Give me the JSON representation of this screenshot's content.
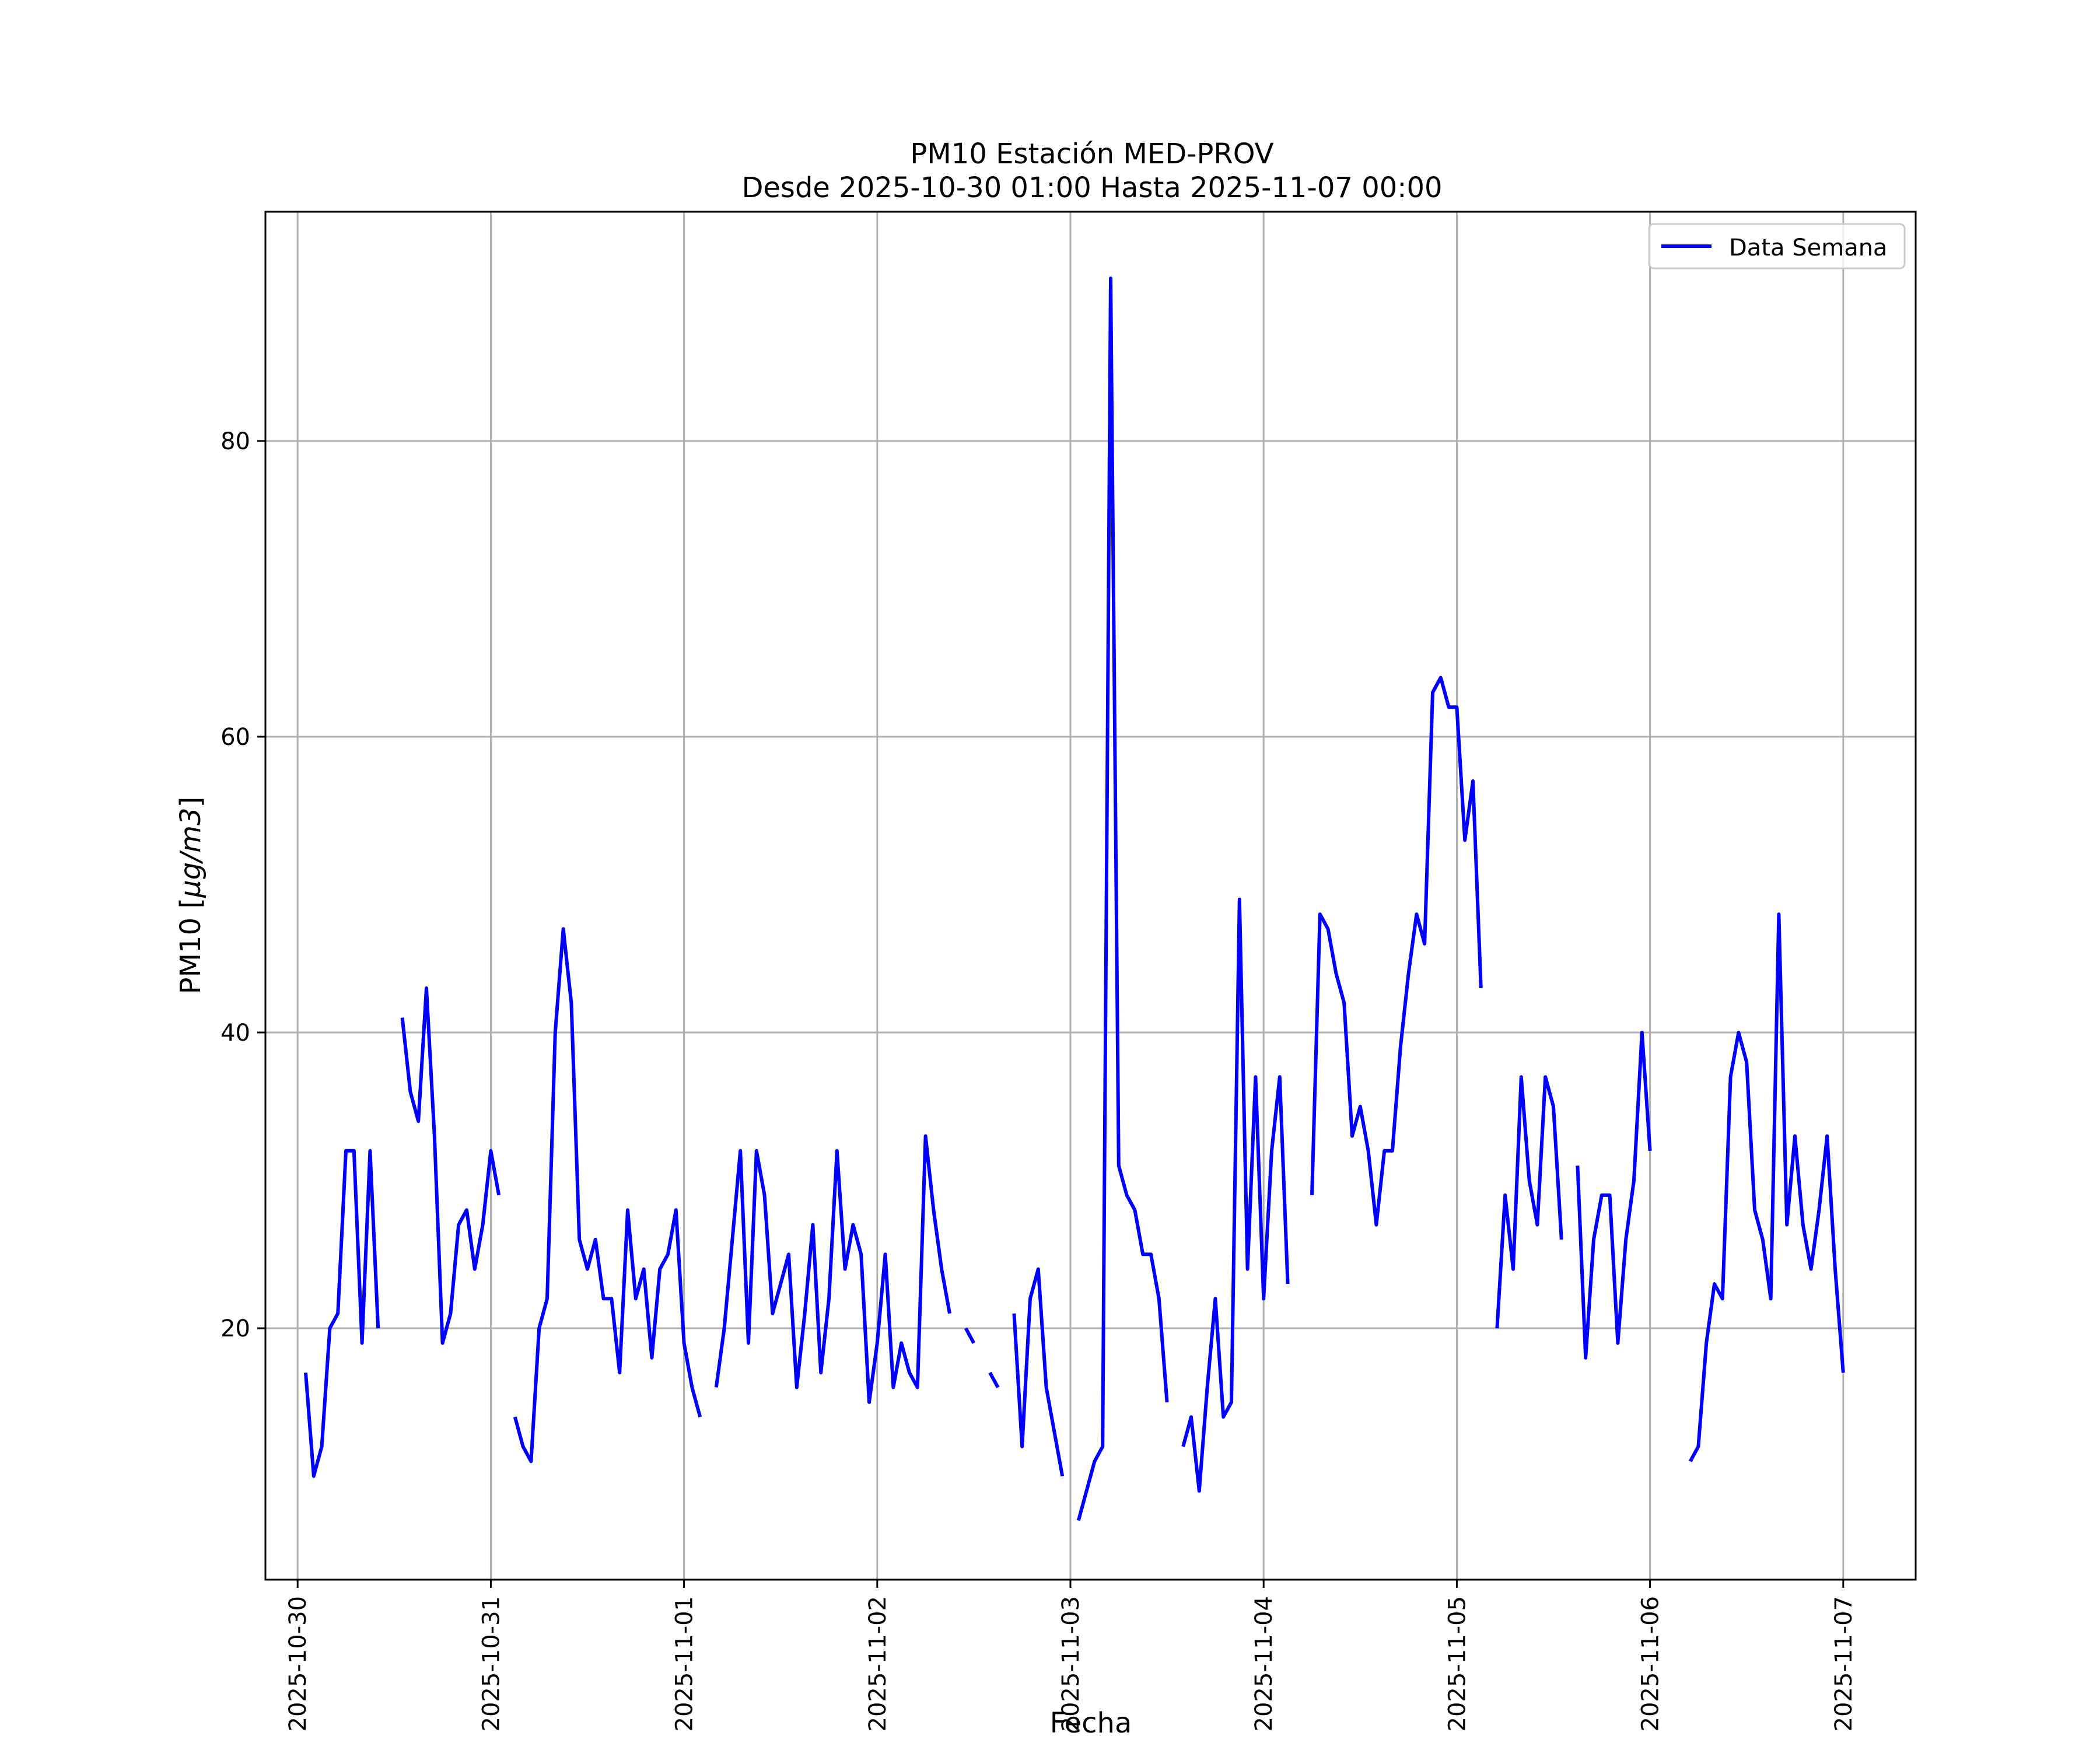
{
  "chart_data": {
    "type": "line",
    "title": "PM10 Estación MED-PROV",
    "subtitle": "Desde 2025-10-30 01:00 Hasta 2025-11-07 00:00",
    "xlabel": "Fecha",
    "ylabel_text": "PM10 [",
    "ylabel_unit": "μg/m3",
    "ylabel_close": "]",
    "xlim": [
      "2025-10-29 20:00",
      "2025-11-07 09:00"
    ],
    "ylim": [
      3,
      95.5
    ],
    "grid": true,
    "legend_position": "top-right",
    "line_color": "#0000ff",
    "x_ticks": [
      "2025-10-30",
      "2025-10-31",
      "2025-11-01",
      "2025-11-02",
      "2025-11-03",
      "2025-11-04",
      "2025-11-05",
      "2025-11-06",
      "2025-11-07"
    ],
    "y_ticks": [
      20,
      40,
      60,
      80
    ],
    "series": [
      {
        "name": "Data Semana",
        "segments": [
          [
            [
              "2025-10-30 01:00",
              17
            ],
            [
              "2025-10-30 02:00",
              10
            ],
            [
              "2025-10-30 03:00",
              12
            ],
            [
              "2025-10-30 04:00",
              20
            ],
            [
              "2025-10-30 05:00",
              21
            ],
            [
              "2025-10-30 06:00",
              32
            ],
            [
              "2025-10-30 07:00",
              32
            ],
            [
              "2025-10-30 08:00",
              19
            ],
            [
              "2025-10-30 09:00",
              32
            ],
            [
              "2025-10-30 10:00",
              20
            ]
          ],
          [
            [
              "2025-10-30 13:00",
              41
            ],
            [
              "2025-10-30 14:00",
              36
            ],
            [
              "2025-10-30 15:00",
              34
            ],
            [
              "2025-10-30 16:00",
              43
            ],
            [
              "2025-10-30 17:00",
              33
            ],
            [
              "2025-10-30 18:00",
              19
            ],
            [
              "2025-10-30 19:00",
              21
            ],
            [
              "2025-10-30 20:00",
              27
            ],
            [
              "2025-10-30 21:00",
              28
            ],
            [
              "2025-10-30 22:00",
              24
            ],
            [
              "2025-10-30 23:00",
              27
            ],
            [
              "2025-10-31 00:00",
              32
            ],
            [
              "2025-10-31 01:00",
              29
            ]
          ],
          [
            [
              "2025-10-31 03:00",
              14
            ],
            [
              "2025-10-31 04:00",
              12
            ],
            [
              "2025-10-31 05:00",
              11
            ],
            [
              "2025-10-31 06:00",
              20
            ],
            [
              "2025-10-31 07:00",
              22
            ],
            [
              "2025-10-31 08:00",
              40
            ],
            [
              "2025-10-31 09:00",
              47
            ],
            [
              "2025-10-31 10:00",
              42
            ],
            [
              "2025-10-31 11:00",
              26
            ],
            [
              "2025-10-31 12:00",
              24
            ],
            [
              "2025-10-31 13:00",
              26
            ],
            [
              "2025-10-31 14:00",
              22
            ],
            [
              "2025-10-31 15:00",
              22
            ],
            [
              "2025-10-31 16:00",
              17
            ],
            [
              "2025-10-31 17:00",
              28
            ],
            [
              "2025-10-31 18:00",
              22
            ],
            [
              "2025-10-31 19:00",
              24
            ],
            [
              "2025-10-31 20:00",
              18
            ],
            [
              "2025-10-31 21:00",
              24
            ],
            [
              "2025-10-31 22:00",
              25
            ],
            [
              "2025-10-31 23:00",
              28
            ],
            [
              "2025-11-01 00:00",
              19
            ],
            [
              "2025-11-01 01:00",
              16
            ],
            [
              "2025-11-01 02:00",
              14
            ]
          ],
          [
            [
              "2025-11-01 04:00",
              16
            ],
            [
              "2025-11-01 05:00",
              20
            ],
            [
              "2025-11-01 06:00",
              26
            ],
            [
              "2025-11-01 07:00",
              32
            ],
            [
              "2025-11-01 08:00",
              19
            ],
            [
              "2025-11-01 09:00",
              32
            ],
            [
              "2025-11-01 10:00",
              29
            ],
            [
              "2025-11-01 11:00",
              21
            ],
            [
              "2025-11-01 12:00",
              23
            ],
            [
              "2025-11-01 13:00",
              25
            ],
            [
              "2025-11-01 14:00",
              16
            ],
            [
              "2025-11-01 15:00",
              21
            ],
            [
              "2025-11-01 16:00",
              27
            ],
            [
              "2025-11-01 17:00",
              17
            ],
            [
              "2025-11-01 18:00",
              22
            ],
            [
              "2025-11-01 19:00",
              32
            ],
            [
              "2025-11-01 20:00",
              24
            ],
            [
              "2025-11-01 21:00",
              27
            ],
            [
              "2025-11-01 22:00",
              25
            ],
            [
              "2025-11-01 23:00",
              15
            ],
            [
              "2025-11-02 00:00",
              19
            ],
            [
              "2025-11-02 01:00",
              25
            ],
            [
              "2025-11-02 02:00",
              16
            ],
            [
              "2025-11-02 03:00",
              19
            ],
            [
              "2025-11-02 04:00",
              17
            ],
            [
              "2025-11-02 05:00",
              16
            ],
            [
              "2025-11-02 06:00",
              33
            ],
            [
              "2025-11-02 07:00",
              28
            ],
            [
              "2025-11-02 08:00",
              24
            ],
            [
              "2025-11-02 09:00",
              21
            ]
          ],
          [
            [
              "2025-11-02 11:00",
              20
            ],
            [
              "2025-11-02 12:00",
              19
            ]
          ],
          [
            [
              "2025-11-02 14:00",
              17
            ],
            [
              "2025-11-02 15:00",
              16
            ]
          ],
          [
            [
              "2025-11-02 17:00",
              21
            ],
            [
              "2025-11-02 18:00",
              12
            ],
            [
              "2025-11-02 19:00",
              22
            ],
            [
              "2025-11-02 20:00",
              24
            ],
            [
              "2025-11-02 21:00",
              16
            ],
            [
              "2025-11-02 22:00",
              13
            ],
            [
              "2025-11-02 23:00",
              10
            ]
          ],
          [
            [
              "2025-11-03 01:00",
              7
            ],
            [
              "2025-11-03 02:00",
              9
            ],
            [
              "2025-11-03 03:00",
              11
            ],
            [
              "2025-11-03 04:00",
              12
            ],
            [
              "2025-11-03 05:00",
              91
            ],
            [
              "2025-11-03 06:00",
              31
            ],
            [
              "2025-11-03 07:00",
              29
            ],
            [
              "2025-11-03 08:00",
              28
            ],
            [
              "2025-11-03 09:00",
              25
            ],
            [
              "2025-11-03 10:00",
              25
            ],
            [
              "2025-11-03 11:00",
              22
            ],
            [
              "2025-11-03 12:00",
              15
            ]
          ],
          [
            [
              "2025-11-03 14:00",
              12
            ],
            [
              "2025-11-03 15:00",
              14
            ],
            [
              "2025-11-03 16:00",
              9
            ],
            [
              "2025-11-03 17:00",
              16
            ],
            [
              "2025-11-03 18:00",
              22
            ],
            [
              "2025-11-03 19:00",
              14
            ],
            [
              "2025-11-03 20:00",
              15
            ],
            [
              "2025-11-03 21:00",
              49
            ],
            [
              "2025-11-03 22:00",
              24
            ],
            [
              "2025-11-03 23:00",
              37
            ],
            [
              "2025-11-04 00:00",
              22
            ],
            [
              "2025-11-04 01:00",
              32
            ],
            [
              "2025-11-04 02:00",
              37
            ],
            [
              "2025-11-04 03:00",
              23
            ]
          ],
          [
            [
              "2025-11-04 06:00",
              29
            ],
            [
              "2025-11-04 07:00",
              48
            ],
            [
              "2025-11-04 08:00",
              47
            ],
            [
              "2025-11-04 09:00",
              44
            ],
            [
              "2025-11-04 10:00",
              42
            ],
            [
              "2025-11-04 11:00",
              33
            ],
            [
              "2025-11-04 12:00",
              35
            ],
            [
              "2025-11-04 13:00",
              32
            ],
            [
              "2025-11-04 14:00",
              27
            ],
            [
              "2025-11-04 15:00",
              32
            ],
            [
              "2025-11-04 16:00",
              32
            ],
            [
              "2025-11-04 17:00",
              39
            ],
            [
              "2025-11-04 18:00",
              44
            ],
            [
              "2025-11-04 19:00",
              48
            ],
            [
              "2025-11-04 20:00",
              46
            ],
            [
              "2025-11-04 21:00",
              63
            ],
            [
              "2025-11-04 22:00",
              64
            ],
            [
              "2025-11-04 23:00",
              62
            ],
            [
              "2025-11-05 00:00",
              62
            ],
            [
              "2025-11-05 01:00",
              53
            ],
            [
              "2025-11-05 02:00",
              57
            ],
            [
              "2025-11-05 03:00",
              43
            ]
          ],
          [
            [
              "2025-11-05 05:00",
              20
            ],
            [
              "2025-11-05 06:00",
              29
            ],
            [
              "2025-11-05 07:00",
              24
            ],
            [
              "2025-11-05 08:00",
              37
            ],
            [
              "2025-11-05 09:00",
              30
            ],
            [
              "2025-11-05 10:00",
              27
            ],
            [
              "2025-11-05 11:00",
              37
            ],
            [
              "2025-11-05 12:00",
              35
            ],
            [
              "2025-11-05 13:00",
              26
            ]
          ],
          [
            [
              "2025-11-05 15:00",
              31
            ],
            [
              "2025-11-05 16:00",
              18
            ],
            [
              "2025-11-05 17:00",
              26
            ],
            [
              "2025-11-05 18:00",
              29
            ],
            [
              "2025-11-05 19:00",
              29
            ],
            [
              "2025-11-05 20:00",
              19
            ],
            [
              "2025-11-05 21:00",
              26
            ],
            [
              "2025-11-05 22:00",
              30
            ],
            [
              "2025-11-05 23:00",
              40
            ],
            [
              "2025-11-06 00:00",
              32
            ]
          ],
          [
            [
              "2025-11-06 05:00",
              11
            ],
            [
              "2025-11-06 06:00",
              12
            ],
            [
              "2025-11-06 07:00",
              19
            ],
            [
              "2025-11-06 08:00",
              23
            ],
            [
              "2025-11-06 09:00",
              22
            ],
            [
              "2025-11-06 10:00",
              37
            ],
            [
              "2025-11-06 11:00",
              40
            ],
            [
              "2025-11-06 12:00",
              38
            ],
            [
              "2025-11-06 13:00",
              28
            ],
            [
              "2025-11-06 14:00",
              26
            ],
            [
              "2025-11-06 15:00",
              22
            ],
            [
              "2025-11-06 16:00",
              48
            ],
            [
              "2025-11-06 17:00",
              27
            ],
            [
              "2025-11-06 18:00",
              33
            ],
            [
              "2025-11-06 19:00",
              27
            ],
            [
              "2025-11-06 20:00",
              24
            ],
            [
              "2025-11-06 21:00",
              28
            ],
            [
              "2025-11-06 22:00",
              33
            ],
            [
              "2025-11-06 23:00",
              24
            ],
            [
              "2025-11-07 00:00",
              17
            ]
          ]
        ]
      }
    ]
  }
}
